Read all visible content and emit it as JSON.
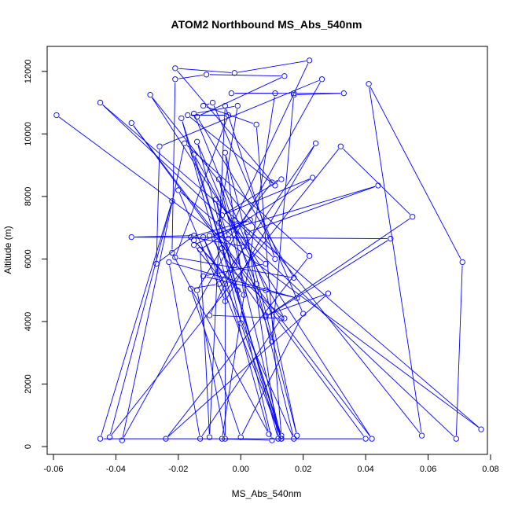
{
  "chart_data": {
    "type": "line",
    "title": "ATOM2 Northbound MS_Abs_540nm",
    "xlabel": "MS_Abs_540nm",
    "ylabel": "Altitude (m)",
    "xlim": [
      -0.062,
      0.079
    ],
    "ylim": [
      -250,
      12800
    ],
    "xticks": [
      -0.06,
      -0.04,
      -0.02,
      0.0,
      0.02,
      0.04,
      0.06,
      0.08
    ],
    "xtick_labels": [
      "-0.06",
      "-0.04",
      "-0.02",
      "0.00",
      "0.02",
      "0.04",
      "0.06",
      "0.08"
    ],
    "yticks": [
      0,
      2000,
      4000,
      6000,
      8000,
      10000,
      12000
    ],
    "ytick_labels": [
      "0",
      "2000",
      "4000",
      "6000",
      "8000",
      "10000",
      "12000"
    ],
    "grid": false,
    "legend": "none",
    "series_color": "#0000ff",
    "marker": "open-circle",
    "points": [
      [
        -0.059,
        10600
      ],
      [
        0.077,
        550
      ],
      [
        -0.045,
        11000
      ],
      [
        0.069,
        250
      ],
      [
        0.071,
        5900
      ],
      [
        0.041,
        11600
      ],
      [
        0.058,
        350
      ],
      [
        -0.029,
        11250
      ],
      [
        0.042,
        250
      ],
      [
        -0.035,
        10350
      ],
      [
        0.04,
        250
      ],
      [
        -0.045,
        250
      ],
      [
        -0.022,
        7850
      ],
      [
        -0.042,
        300
      ],
      [
        0.032,
        9600
      ],
      [
        0.055,
        7350
      ],
      [
        0.008,
        4150
      ],
      [
        0.048,
        6650
      ],
      [
        -0.035,
        6700
      ],
      [
        -0.015,
        6750
      ],
      [
        -0.027,
        5850
      ],
      [
        -0.026,
        9600
      ],
      [
        0.026,
        11750
      ],
      [
        -0.038,
        200
      ],
      [
        -0.018,
        9700
      ],
      [
        0.022,
        6100
      ],
      [
        -0.024,
        250
      ],
      [
        0.028,
        4900
      ],
      [
        0.008,
        4200
      ],
      [
        -0.01,
        6750
      ],
      [
        0.044,
        8350
      ],
      [
        0.002,
        6850
      ],
      [
        0.012,
        250
      ],
      [
        -0.014,
        9750
      ],
      [
        0.005,
        5200
      ],
      [
        0.017,
        250
      ],
      [
        -0.012,
        6700
      ],
      [
        0.013,
        250
      ],
      [
        -0.007,
        8550
      ],
      [
        0.01,
        3350
      ],
      [
        0.017,
        11250
      ],
      [
        0.033,
        11300
      ],
      [
        0.017,
        11300
      ],
      [
        -0.003,
        11300
      ],
      [
        0.011,
        11300
      ],
      [
        -0.006,
        250
      ],
      [
        0.01,
        200
      ],
      [
        -0.008,
        7900
      ],
      [
        -0.004,
        6650
      ],
      [
        0.01,
        8450
      ],
      [
        0.013,
        8550
      ],
      [
        -0.006,
        7400
      ],
      [
        0.023,
        8600
      ],
      [
        -0.013,
        6300
      ],
      [
        -0.01,
        300
      ],
      [
        -0.005,
        10900
      ],
      [
        0.011,
        6000
      ],
      [
        -0.002,
        7250
      ],
      [
        0.022,
        12350
      ],
      [
        -0.002,
        11950
      ],
      [
        -0.021,
        12100
      ],
      [
        0.011,
        8350
      ],
      [
        -0.017,
        10600
      ],
      [
        -0.004,
        10600
      ],
      [
        -0.021,
        6050
      ],
      [
        0.017,
        5400
      ],
      [
        -0.014,
        10550
      ],
      [
        0.014,
        11850
      ],
      [
        -0.011,
        11900
      ],
      [
        -0.021,
        11750
      ],
      [
        -0.022,
        6200
      ],
      [
        0.009,
        400
      ],
      [
        -0.019,
        10500
      ],
      [
        0.013,
        350
      ],
      [
        0.005,
        10300
      ],
      [
        -0.012,
        10900
      ],
      [
        -0.009,
        11000
      ],
      [
        0.02,
        4250
      ],
      [
        0.0,
        300
      ],
      [
        -0.016,
        5050
      ],
      [
        -0.007,
        5200
      ],
      [
        0.024,
        9700
      ],
      [
        -0.005,
        4650
      ],
      [
        -0.02,
        8200
      ],
      [
        0.008,
        5850
      ],
      [
        -0.012,
        5450
      ],
      [
        0.018,
        4750
      ],
      [
        -0.023,
        5900
      ],
      [
        -0.013,
        250
      ],
      [
        0.013,
        4100
      ],
      [
        -0.01,
        4200
      ],
      [
        0.001,
        6400
      ],
      [
        -0.016,
        6700
      ],
      [
        0.003,
        7250
      ],
      [
        -0.015,
        6450
      ],
      [
        -0.005,
        5200
      ],
      [
        -0.005,
        250
      ],
      [
        -0.014,
        5000
      ],
      [
        -0.006,
        6350
      ],
      [
        0.0,
        3950
      ],
      [
        0.013,
        250
      ],
      [
        -0.015,
        9350
      ],
      [
        0.014,
        4100
      ],
      [
        -0.003,
        5650
      ],
      [
        -0.001,
        5000
      ],
      [
        -0.015,
        6600
      ],
      [
        0.001,
        4850
      ],
      [
        -0.005,
        9400
      ],
      [
        0.018,
        350
      ],
      [
        0.008,
        5000
      ],
      [
        -0.015,
        10650
      ],
      [
        -0.001,
        10900
      ],
      [
        -0.007,
        7150
      ],
      [
        -0.002,
        5800
      ]
    ]
  }
}
